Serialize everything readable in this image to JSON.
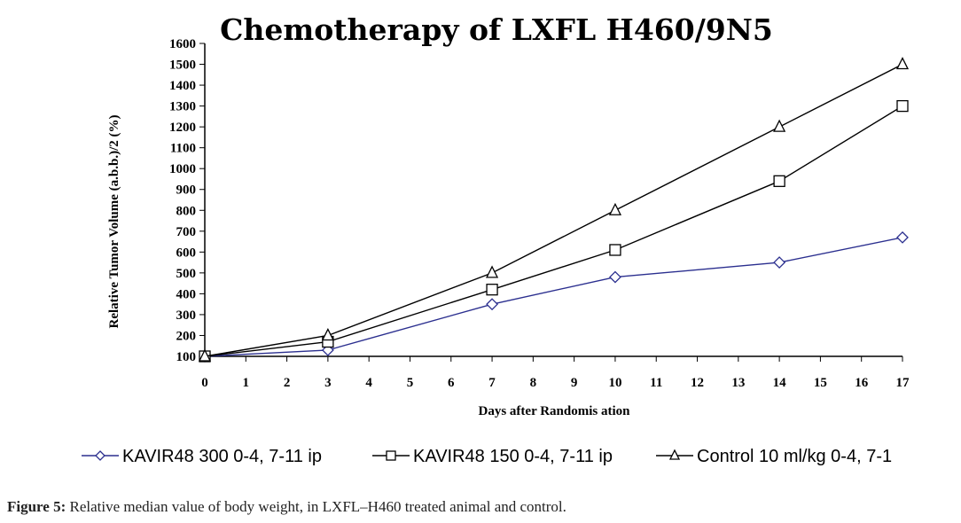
{
  "chart_data": {
    "type": "line",
    "title": "Chemotherapy of LXFL H460/9N5",
    "xlabel": "Days after Randomis ation",
    "ylabel": "Relative Tumor Volume (a.b.b.)/2 (%)",
    "xlim": [
      0,
      17
    ],
    "ylim": [
      100,
      1600
    ],
    "xticks": [
      "0",
      "1",
      "2",
      "3",
      "4",
      "5",
      "6",
      "7",
      "8",
      "9",
      "10",
      "11",
      "12",
      "13",
      "14",
      "15",
      "16",
      "17"
    ],
    "yticks": [
      "100",
      "200",
      "300",
      "400",
      "500",
      "600",
      "700",
      "800",
      "900",
      "1000",
      "1100",
      "1200",
      "1300",
      "1400",
      "1500",
      "1600"
    ],
    "grid": false,
    "legend_position": "bottom",
    "x": [
      0,
      3,
      7,
      10,
      14,
      17
    ],
    "series": [
      {
        "name": "KAVIR48 300 0-4, 7-11 ip",
        "values": [
          100,
          130,
          350,
          480,
          550,
          670
        ],
        "color": "#2b2f8f",
        "marker": "diamond"
      },
      {
        "name": "KAVIR48 150 0-4, 7-11 ip",
        "values": [
          100,
          170,
          420,
          610,
          940,
          1300
        ],
        "color": "#000000",
        "marker": "square"
      },
      {
        "name": "Control 10 ml/kg 0-4, 7-1",
        "values": [
          100,
          200,
          500,
          800,
          1200,
          1500
        ],
        "color": "#000000",
        "marker": "triangle"
      }
    ]
  },
  "caption": {
    "label": "Figure 5:",
    "text": " Relative median value of body weight, in LXFL–H460 treated animal and control."
  }
}
